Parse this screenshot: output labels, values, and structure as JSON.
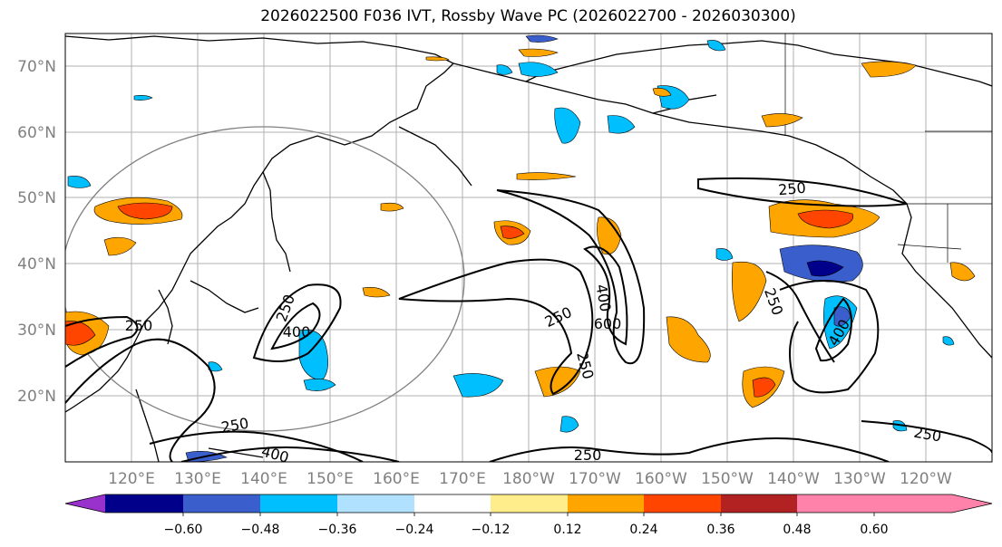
{
  "title": "2026022500 F036 IVT, Rossby Wave PC (2026022700 - 2026030300)",
  "lat_labels": [
    "70°N",
    "60°N",
    "50°N",
    "40°N",
    "30°N",
    "20°N"
  ],
  "lon_labels": [
    "120°E",
    "130°E",
    "140°E",
    "150°E",
    "160°E",
    "170°E",
    "180°W",
    "170°W",
    "160°W",
    "150°W",
    "140°W",
    "130°W",
    "120°W"
  ],
  "contour_labels": [
    "250",
    "250",
    "250",
    "250",
    "250",
    "250",
    "250",
    "250",
    "400",
    "400",
    "400",
    "400",
    "600",
    "250"
  ],
  "colorbar": {
    "colors": [
      "#9932cc",
      "#00008b",
      "#3a5fcd",
      "#00bfff",
      "#b0e2ff",
      "#ffffff",
      "#ffec8b",
      "#ffa500",
      "#ff4500",
      "#b22222",
      "#ff82ab"
    ],
    "ticks": [
      "−0.60",
      "−0.48",
      "−0.36",
      "−0.24",
      "−0.12",
      "0.12",
      "0.24",
      "0.36",
      "0.48",
      "0.60"
    ]
  }
}
